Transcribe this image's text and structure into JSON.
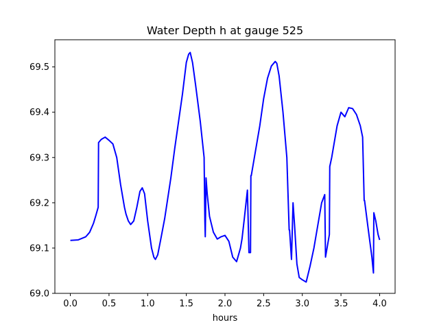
{
  "chart_data": {
    "type": "line",
    "title": "Water Depth h at gauge 525",
    "xlabel": "hours",
    "ylabel": "",
    "xlim": [
      -0.2,
      4.2
    ],
    "ylim": [
      69.0,
      69.56
    ],
    "xticks": [
      0.0,
      0.5,
      1.0,
      1.5,
      2.0,
      2.5,
      3.0,
      3.5,
      4.0
    ],
    "xtick_labels": [
      "0.0",
      "0.5",
      "1.0",
      "1.5",
      "2.0",
      "2.5",
      "3.0",
      "3.5",
      "4.0"
    ],
    "yticks": [
      69.0,
      69.1,
      69.2,
      69.3,
      69.4,
      69.5
    ],
    "ytick_labels": [
      "69.0",
      "69.1",
      "69.2",
      "69.3",
      "69.4",
      "69.5"
    ],
    "grid": false,
    "series": [
      {
        "color": "#0000ff",
        "x": [
          0.0,
          0.1,
          0.2,
          0.25,
          0.3,
          0.33,
          0.36,
          0.365,
          0.4,
          0.45,
          0.5,
          0.55,
          0.6,
          0.65,
          0.7,
          0.72,
          0.75,
          0.78,
          0.82,
          0.86,
          0.9,
          0.93,
          0.96,
          1.0,
          1.05,
          1.08,
          1.1,
          1.13,
          1.17,
          1.22,
          1.3,
          1.35,
          1.4,
          1.45,
          1.5,
          1.53,
          1.55,
          1.58,
          1.62,
          1.68,
          1.73,
          1.74,
          1.745,
          1.755,
          1.77,
          1.8,
          1.85,
          1.9,
          1.95,
          2.0,
          2.05,
          2.1,
          2.15,
          2.2,
          2.22,
          2.25,
          2.29,
          2.31,
          2.33,
          2.335,
          2.34,
          2.4,
          2.45,
          2.5,
          2.55,
          2.6,
          2.65,
          2.67,
          2.7,
          2.75,
          2.8,
          2.83,
          2.835,
          2.86,
          2.88,
          2.9,
          2.93,
          2.96,
          3.0,
          3.05,
          3.1,
          3.15,
          3.2,
          3.25,
          3.29,
          3.3,
          3.35,
          3.355,
          3.38,
          3.45,
          3.5,
          3.55,
          3.6,
          3.65,
          3.7,
          3.75,
          3.78,
          3.8,
          3.805,
          3.85,
          3.9,
          3.92,
          3.925,
          3.95,
          3.98,
          4.0
        ],
        "y": [
          69.117,
          69.118,
          69.125,
          69.135,
          69.155,
          69.172,
          69.19,
          69.333,
          69.34,
          69.345,
          69.338,
          69.33,
          69.3,
          69.24,
          69.19,
          69.175,
          69.16,
          69.152,
          69.16,
          69.19,
          69.225,
          69.233,
          69.22,
          69.16,
          69.1,
          69.08,
          69.075,
          69.085,
          69.12,
          69.165,
          69.255,
          69.32,
          69.38,
          69.44,
          69.51,
          69.528,
          69.532,
          69.51,
          69.46,
          69.38,
          69.3,
          69.16,
          69.125,
          69.255,
          69.22,
          69.17,
          69.135,
          69.12,
          69.125,
          69.128,
          69.115,
          69.08,
          69.07,
          69.1,
          69.12,
          69.165,
          69.228,
          69.09,
          69.09,
          69.26,
          69.26,
          69.32,
          69.37,
          69.43,
          69.475,
          69.502,
          69.512,
          69.508,
          69.48,
          69.4,
          69.3,
          69.14,
          69.14,
          69.075,
          69.2,
          69.15,
          69.065,
          69.035,
          69.03,
          69.025,
          69.06,
          69.1,
          69.15,
          69.2,
          69.218,
          69.08,
          69.13,
          69.28,
          69.3,
          69.37,
          69.4,
          69.39,
          69.41,
          69.408,
          69.395,
          69.37,
          69.345,
          69.205,
          69.205,
          69.145,
          69.08,
          69.045,
          69.178,
          69.16,
          69.13,
          69.118
        ]
      }
    ]
  }
}
